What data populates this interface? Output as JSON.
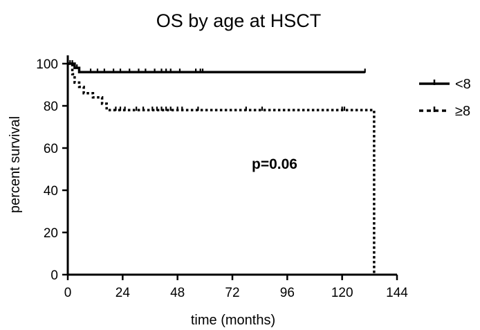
{
  "chart_data": {
    "type": "line",
    "subtype": "kaplan-meier-step",
    "title": "OS by  age at HSCT",
    "xlabel": "time (months)",
    "ylabel": "percent survival",
    "xlim": [
      0,
      144
    ],
    "ylim": [
      0,
      100
    ],
    "x_ticks": [
      "0",
      "24",
      "48",
      "72",
      "96",
      "120",
      "144"
    ],
    "y_ticks": [
      "0",
      "20",
      "40",
      "60",
      "80",
      "100"
    ],
    "grid": false,
    "legend_position": "right",
    "annotation": "p=0.06",
    "series": [
      {
        "name": "<8",
        "line_style": "solid",
        "color": "#000000",
        "steps": [
          [
            0,
            100
          ],
          [
            3,
            100
          ],
          [
            3,
            98
          ],
          [
            5,
            98
          ],
          [
            5,
            96
          ],
          [
            130,
            96
          ]
        ],
        "censors": [
          1,
          2,
          4,
          10,
          13,
          16,
          20,
          23,
          27,
          31,
          34,
          38,
          41,
          43,
          45,
          49,
          56,
          58,
          59,
          130
        ]
      },
      {
        "name": "≥8",
        "line_style": "dotted",
        "color": "#000000",
        "steps": [
          [
            0,
            100
          ],
          [
            2,
            100
          ],
          [
            2,
            95
          ],
          [
            3,
            95
          ],
          [
            3,
            91
          ],
          [
            5,
            91
          ],
          [
            5,
            89
          ],
          [
            7,
            89
          ],
          [
            7,
            86
          ],
          [
            11,
            86
          ],
          [
            11,
            84
          ],
          [
            15,
            84
          ],
          [
            15,
            81
          ],
          [
            17,
            81
          ],
          [
            17,
            78
          ],
          [
            134,
            78
          ],
          [
            134,
            0
          ]
        ],
        "censors": [
          21,
          23,
          25,
          30,
          33,
          37,
          39,
          41,
          43,
          45,
          48,
          50,
          57,
          78,
          85,
          120,
          121
        ]
      }
    ]
  }
}
